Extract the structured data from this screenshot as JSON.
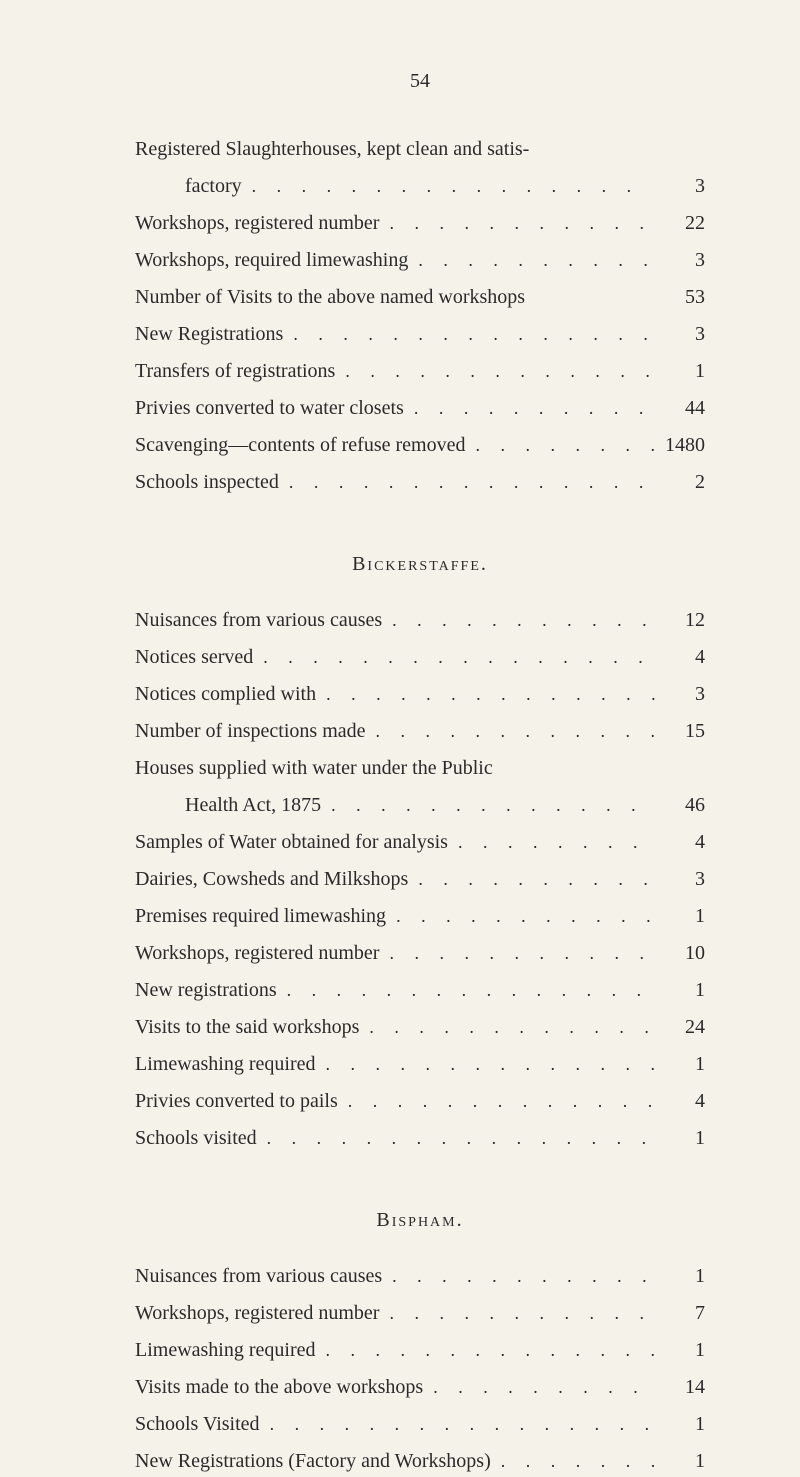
{
  "pageNumber": "54",
  "sections": [
    {
      "title": null,
      "entries": [
        {
          "label": "Registered Slaughterhouses, kept clean and satis-",
          "value": null,
          "continuation": true
        },
        {
          "label": "factory",
          "value": "3",
          "indent": true
        },
        {
          "label": "Workshops, registered number",
          "value": "22"
        },
        {
          "label": "Workshops, required limewashing",
          "value": "3"
        },
        {
          "label": "Number of Visits to the above named workshops",
          "value": "53",
          "noDots": true
        },
        {
          "label": "New Registrations",
          "value": "3"
        },
        {
          "label": "Transfers of registrations",
          "value": "1"
        },
        {
          "label": "Privies converted to water closets",
          "value": "44"
        },
        {
          "label": "Scavenging—contents of refuse removed",
          "value": "1480"
        },
        {
          "label": "Schools inspected",
          "value": "2"
        }
      ]
    },
    {
      "title": "Bickerstaffe.",
      "entries": [
        {
          "label": "Nuisances from various causes",
          "value": "12"
        },
        {
          "label": "Notices served",
          "value": "4"
        },
        {
          "label": "Notices complied with",
          "value": "3"
        },
        {
          "label": "Number of inspections made",
          "value": "15"
        },
        {
          "label": "Houses supplied with water under the Public",
          "value": null,
          "continuation": true
        },
        {
          "label": "Health Act, 1875",
          "value": "46",
          "indent": true
        },
        {
          "label": "Samples of Water obtained for analysis",
          "value": "4"
        },
        {
          "label": "Dairies, Cowsheds and Milkshops",
          "value": "3"
        },
        {
          "label": "Premises required limewashing",
          "value": "1"
        },
        {
          "label": "Workshops, registered number",
          "value": "10"
        },
        {
          "label": "New registrations",
          "value": "1"
        },
        {
          "label": "Visits to the said workshops",
          "value": "24"
        },
        {
          "label": "Limewashing required",
          "value": "1"
        },
        {
          "label": "Privies converted to pails",
          "value": "4"
        },
        {
          "label": "Schools visited",
          "value": "1"
        }
      ]
    },
    {
      "title": "Bispham.",
      "entries": [
        {
          "label": "Nuisances from various causes",
          "value": "1"
        },
        {
          "label": "Workshops, registered number",
          "value": "7"
        },
        {
          "label": "Limewashing required",
          "value": "1"
        },
        {
          "label": "Visits made to the above workshops",
          "value": "14"
        },
        {
          "label": "Schools Visited",
          "value": "1"
        },
        {
          "label": "New Registrations (Factory and Workshops)",
          "value": "1"
        }
      ]
    }
  ]
}
